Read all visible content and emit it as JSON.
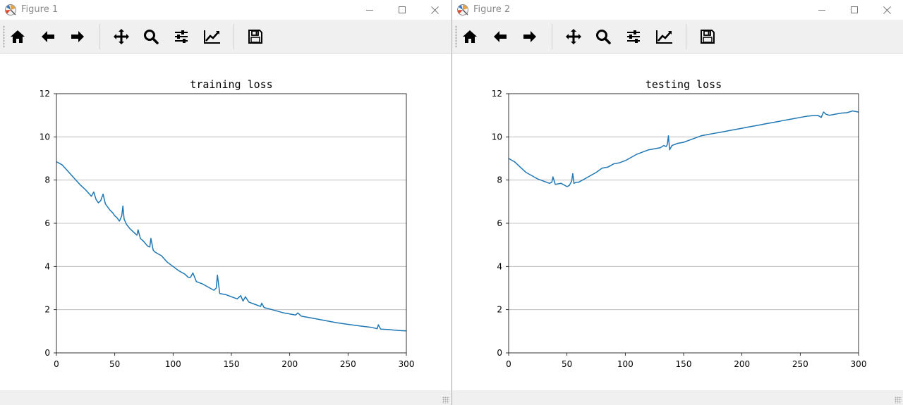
{
  "windows": [
    {
      "title": "Figure 1",
      "chart_data": {
        "type": "line",
        "title": "training loss",
        "xlabel": "",
        "ylabel": "",
        "xlim": [
          0,
          300
        ],
        "ylim": [
          0,
          12
        ],
        "xticks": [
          0,
          50,
          100,
          150,
          200,
          250,
          300
        ],
        "yticks": [
          0,
          2,
          4,
          6,
          8,
          10,
          12
        ],
        "grid": "y",
        "series": [
          {
            "color": "#1f77b4",
            "x": [
              0,
              5,
              10,
              15,
              20,
              25,
              30,
              32,
              34,
              36,
              38,
              40,
              42,
              44,
              46,
              48,
              50,
              52,
              54,
              56,
              57,
              58,
              60,
              63,
              66,
              69,
              70,
              72,
              75,
              78,
              80,
              81,
              83,
              85,
              90,
              95,
              100,
              105,
              110,
              113,
              115,
              117,
              120,
              125,
              130,
              135,
              137,
              138,
              140,
              145,
              150,
              155,
              158,
              160,
              162,
              165,
              170,
              175,
              176,
              178,
              185,
              195,
              200,
              205,
              207,
              210,
              220,
              230,
              240,
              250,
              260,
              270,
              275,
              276,
              278,
              285,
              290,
              295,
              300
            ],
            "y": [
              8.85,
              8.7,
              8.4,
              8.1,
              7.8,
              7.55,
              7.25,
              7.45,
              7.1,
              6.95,
              7.05,
              7.35,
              6.9,
              6.75,
              6.6,
              6.5,
              6.35,
              6.25,
              6.1,
              6.35,
              6.8,
              6.2,
              5.95,
              5.75,
              5.6,
              5.45,
              5.7,
              5.3,
              5.15,
              4.95,
              4.9,
              5.3,
              4.75,
              4.65,
              4.5,
              4.2,
              4.0,
              3.8,
              3.65,
              3.5,
              3.5,
              3.7,
              3.3,
              3.2,
              3.05,
              2.9,
              3.0,
              3.6,
              2.75,
              2.7,
              2.6,
              2.5,
              2.65,
              2.4,
              2.6,
              2.35,
              2.25,
              2.15,
              2.3,
              2.1,
              2.0,
              1.85,
              1.8,
              1.75,
              1.85,
              1.7,
              1.6,
              1.5,
              1.4,
              1.32,
              1.25,
              1.18,
              1.12,
              1.3,
              1.1,
              1.08,
              1.05,
              1.03,
              1.02
            ]
          }
        ]
      }
    },
    {
      "title": "Figure 2",
      "chart_data": {
        "type": "line",
        "title": "testing loss",
        "xlabel": "",
        "ylabel": "",
        "xlim": [
          0,
          300
        ],
        "ylim": [
          0,
          12
        ],
        "xticks": [
          0,
          50,
          100,
          150,
          200,
          250,
          300
        ],
        "yticks": [
          0,
          2,
          4,
          6,
          8,
          10,
          12
        ],
        "grid": "y",
        "series": [
          {
            "color": "#1f77b4",
            "x": [
              0,
              5,
              10,
              15,
              20,
              25,
              30,
              35,
              37,
              38,
              40,
              45,
              50,
              52,
              54,
              55,
              56,
              58,
              60,
              65,
              70,
              75,
              80,
              85,
              90,
              95,
              100,
              105,
              110,
              115,
              120,
              125,
              130,
              133,
              135,
              136,
              137,
              138,
              140,
              145,
              150,
              155,
              160,
              165,
              170,
              175,
              180,
              185,
              190,
              195,
              200,
              205,
              210,
              215,
              220,
              225,
              230,
              235,
              240,
              245,
              250,
              255,
              260,
              265,
              268,
              270,
              272,
              275,
              280,
              285,
              290,
              295,
              300
            ],
            "y": [
              9.0,
              8.85,
              8.6,
              8.35,
              8.2,
              8.05,
              7.95,
              7.85,
              7.9,
              8.15,
              7.8,
              7.85,
              7.7,
              7.75,
              7.95,
              8.3,
              7.85,
              7.9,
              7.9,
              8.05,
              8.2,
              8.35,
              8.55,
              8.6,
              8.75,
              8.8,
              8.9,
              9.05,
              9.2,
              9.3,
              9.4,
              9.45,
              9.5,
              9.6,
              9.55,
              9.65,
              10.05,
              9.4,
              9.6,
              9.7,
              9.75,
              9.85,
              9.95,
              10.05,
              10.1,
              10.15,
              10.2,
              10.25,
              10.3,
              10.35,
              10.4,
              10.45,
              10.5,
              10.55,
              10.6,
              10.65,
              10.7,
              10.75,
              10.8,
              10.85,
              10.9,
              10.95,
              10.98,
              11.0,
              10.9,
              11.15,
              11.05,
              11.0,
              11.05,
              11.1,
              11.12,
              11.2,
              11.15
            ]
          }
        ]
      }
    }
  ],
  "toolbar": {
    "buttons": [
      "home-icon",
      "back-arrow-icon",
      "forward-arrow-icon",
      "pan-icon",
      "zoom-icon",
      "subplots-icon",
      "edit-curve-icon",
      "save-icon"
    ]
  }
}
